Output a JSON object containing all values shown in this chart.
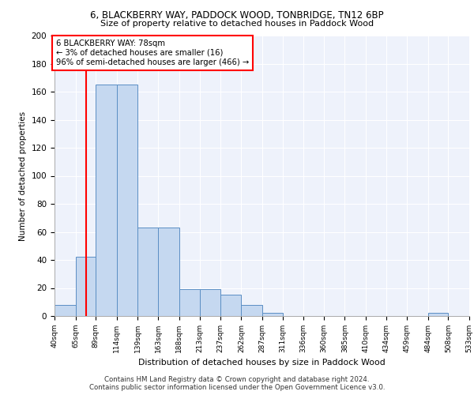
{
  "title1": "6, BLACKBERRY WAY, PADDOCK WOOD, TONBRIDGE, TN12 6BP",
  "title2": "Size of property relative to detached houses in Paddock Wood",
  "xlabel": "Distribution of detached houses by size in Paddock Wood",
  "ylabel": "Number of detached properties",
  "footnote1": "Contains HM Land Registry data © Crown copyright and database right 2024.",
  "footnote2": "Contains public sector information licensed under the Open Government Licence v3.0.",
  "bin_edges": [
    40,
    65,
    89,
    114,
    139,
    163,
    188,
    213,
    237,
    262,
    287,
    311,
    336,
    360,
    385,
    410,
    434,
    459,
    484,
    508,
    533
  ],
  "bin_counts": [
    8,
    42,
    165,
    165,
    63,
    63,
    19,
    19,
    15,
    8,
    2,
    0,
    0,
    0,
    0,
    0,
    0,
    0,
    2,
    0
  ],
  "bar_color": "#c5d8f0",
  "bar_edge_color": "#5b8ec4",
  "red_line_x": 78,
  "annotation_text": "6 BLACKBERRY WAY: 78sqm\n← 3% of detached houses are smaller (16)\n96% of semi-detached houses are larger (466) →",
  "ylim": [
    0,
    200
  ],
  "yticks": [
    0,
    20,
    40,
    60,
    80,
    100,
    120,
    140,
    160,
    180,
    200
  ],
  "background_color": "#eef2fb",
  "grid_color": "white",
  "tick_labels": [
    "40sqm",
    "65sqm",
    "89sqm",
    "114sqm",
    "139sqm",
    "163sqm",
    "188sqm",
    "213sqm",
    "237sqm",
    "262sqm",
    "287sqm",
    "311sqm",
    "336sqm",
    "360sqm",
    "385sqm",
    "410sqm",
    "434sqm",
    "459sqm",
    "484sqm",
    "508sqm",
    "533sqm"
  ]
}
